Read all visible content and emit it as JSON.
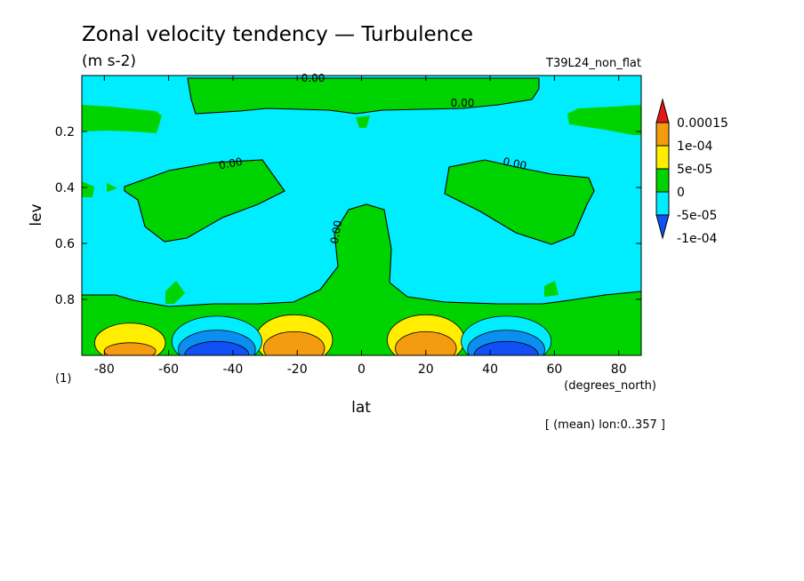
{
  "header": {
    "title": "Zonal velocity tendency — Turbulence",
    "units": "(m s-2)",
    "experiment": "T39L24_non_flat",
    "footnote_left": "(1)",
    "note": "[ (mean) lon:0..357 ]"
  },
  "chart_data": {
    "type": "heatmap",
    "title": "Zonal velocity tendency — Turbulence",
    "subtitle": "(m s-2)",
    "xlabel": "lat",
    "xunits": "(degrees_north)",
    "ylabel": "lev",
    "xlim": [
      -87,
      87
    ],
    "ylim": [
      1.0,
      0.0
    ],
    "y_inverted": true,
    "x_ticks": [
      -80,
      -60,
      -40,
      -20,
      0,
      20,
      40,
      60,
      80
    ],
    "x_tick_labels": [
      "-80",
      "-60",
      "-40",
      "-20",
      "0",
      "20",
      "40",
      "60",
      "80"
    ],
    "y_ticks": [
      0.2,
      0.4,
      0.6,
      0.8
    ],
    "y_tick_labels": [
      "0.2",
      "0.4",
      "0.6",
      "0.8"
    ],
    "contour_labels": [
      "0.00",
      "0.00",
      "0.00",
      "0.00",
      "0.00"
    ],
    "levels": [
      {
        "label": "0.00015",
        "color": "#e8161b"
      },
      {
        "label": "1e-04",
        "color": "#f59b0f"
      },
      {
        "label": "5e-05",
        "color": "#ffee00"
      },
      {
        "label": "0",
        "color": "#00d400"
      },
      {
        "label": "-5e-05",
        "color": "#00ecff"
      },
      {
        "label": "-1e-04",
        "color": "#0a8ef0"
      }
    ],
    "extremes": [
      {
        "label": "min",
        "color": "#1150f5"
      }
    ],
    "regions": [
      {
        "level": "1e-04",
        "lat": -70,
        "lev_range": [
          0.93,
          1.0
        ]
      },
      {
        "level": "1e-04",
        "lat": -20,
        "lev_range": [
          0.91,
          1.0
        ]
      },
      {
        "level": "1e-04",
        "lat": 20,
        "lev_range": [
          0.91,
          1.0
        ]
      },
      {
        "level": "-1e-04",
        "lat": -45,
        "lev_range": [
          0.91,
          1.0
        ]
      },
      {
        "level": "-1e-04",
        "lat": 45,
        "lev_range": [
          0.91,
          1.0
        ]
      }
    ]
  }
}
